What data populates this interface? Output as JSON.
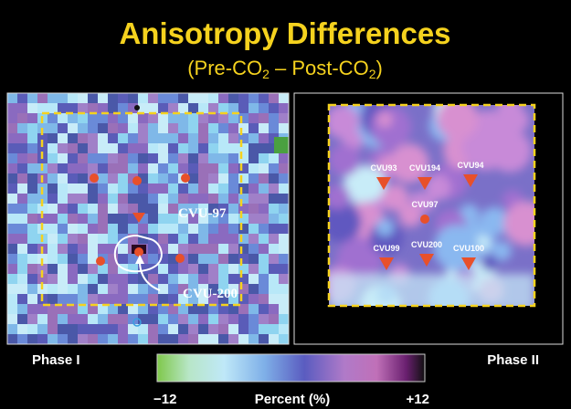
{
  "header": {
    "title": "Anisotropy Differences",
    "subtitle": [
      "(Pre-CO",
      "2",
      " – Post-CO",
      "2",
      ")"
    ]
  },
  "panels": [
    {
      "label": "Phase I",
      "wells": [
        "CVU-97",
        "CVU-200"
      ]
    },
    {
      "label": "Phase II",
      "wells": [
        "CVU93",
        "CVU194",
        "CVU94",
        "CVU97",
        "CVU99",
        "CVU200",
        "CVU100"
      ]
    }
  ],
  "colorbar": {
    "min_label": "−12",
    "title": "Percent (%)",
    "max_label": "+12"
  }
}
